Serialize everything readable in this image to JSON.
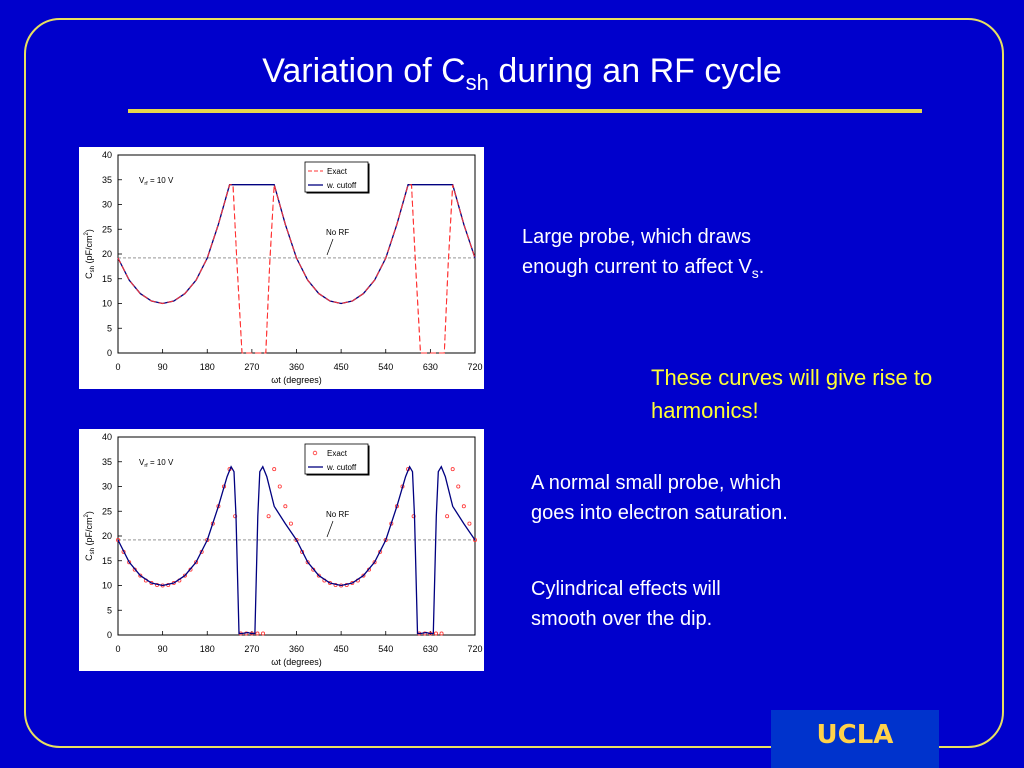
{
  "title": {
    "main": "Variation of C",
    "sub": "sh",
    "rest": " during an RF cycle"
  },
  "text": {
    "large_probe": {
      "before": "Large probe, which draws enough current to affect V",
      "sub": "s",
      "after": "."
    },
    "harmonics": "These curves will give rise to harmonics!",
    "small_probe": "A normal small probe, which goes into electron saturation.",
    "cylindrical": "Cylindrical effects will smooth over the dip."
  },
  "logo": {
    "text": "UCLA"
  },
  "colors": {
    "background": "#0000cc",
    "accent": "#e8d84a",
    "highlight": "#ffff33",
    "exact": "#ff3333",
    "cutoff": "#000080"
  },
  "chart_data": [
    {
      "type": "line",
      "xlabel": "ωt (degrees)",
      "ylabel": "C_sh (pF/cm²)",
      "ylabel_parts": {
        "c": "C",
        "sub": "sh",
        "unit": " (pF/cm",
        "sup": "2",
        "close": ")"
      },
      "xlim": [
        0,
        720
      ],
      "ylim": [
        0,
        40
      ],
      "xticks": [
        0,
        90,
        180,
        270,
        360,
        450,
        540,
        630,
        720
      ],
      "yticks": [
        0,
        5,
        10,
        15,
        20,
        25,
        30,
        35,
        40
      ],
      "annotation_vrf": {
        "v": "V",
        "sub": "rf",
        "rest": " = 10 V"
      },
      "annotation_norf": "No RF",
      "no_rf_level": 19.2,
      "legend": {
        "placement": "top-right",
        "entries": [
          "Exact",
          "w. cutoff"
        ]
      },
      "series": [
        {
          "name": "Exact",
          "style": "dashed",
          "x": [
            0,
            22.5,
            45,
            67.5,
            90,
            112.5,
            135,
            157.5,
            180,
            202.5,
            225,
            232,
            240,
            250,
            258,
            270,
            280,
            290,
            298,
            306,
            315,
            337.5,
            360,
            382.5,
            405,
            427.5,
            450,
            472.5,
            495,
            517.5,
            540,
            562.5,
            585,
            592,
            600,
            610,
            618,
            630,
            640,
            650,
            658,
            666,
            675,
            697.5,
            720
          ],
          "y": [
            19.2,
            14.7,
            12.0,
            10.5,
            10.0,
            10.5,
            12.0,
            14.7,
            19.2,
            26.0,
            34.0,
            34.0,
            18.0,
            0.0,
            0.0,
            0.0,
            0.0,
            0.0,
            0.0,
            18.0,
            34.0,
            26.0,
            19.2,
            14.7,
            12.0,
            10.5,
            10.0,
            10.5,
            12.0,
            14.7,
            19.2,
            26.0,
            34.0,
            34.0,
            18.0,
            0.0,
            0.0,
            0.0,
            0.0,
            0.0,
            0.0,
            18.0,
            34.0,
            26.0,
            19.2
          ]
        },
        {
          "name": "w. cutoff",
          "style": "solid",
          "x": [
            0,
            22.5,
            45,
            67.5,
            90,
            112.5,
            135,
            157.5,
            180,
            202.5,
            225,
            247.5,
            270,
            292.5,
            315,
            337.5,
            360,
            382.5,
            405,
            427.5,
            450,
            472.5,
            495,
            517.5,
            540,
            562.5,
            585,
            607.5,
            630,
            652.5,
            675,
            697.5,
            720
          ],
          "y": [
            19.2,
            14.7,
            12.0,
            10.5,
            10.0,
            10.5,
            12.0,
            14.7,
            19.2,
            26.0,
            34.0,
            34.0,
            34.0,
            34.0,
            34.0,
            26.0,
            19.2,
            14.7,
            12.0,
            10.5,
            10.0,
            10.5,
            12.0,
            14.7,
            19.2,
            26.0,
            34.0,
            34.0,
            34.0,
            34.0,
            34.0,
            26.0,
            19.2
          ]
        }
      ]
    },
    {
      "type": "line",
      "xlabel": "ωt (degrees)",
      "ylabel": "C_sh (pF/cm²)",
      "ylabel_parts": {
        "c": "C",
        "sub": "sh",
        "unit": " (pF/cm",
        "sup": "2",
        "close": ")"
      },
      "xlim": [
        0,
        720
      ],
      "ylim": [
        0,
        40
      ],
      "xticks": [
        0,
        90,
        180,
        270,
        360,
        450,
        540,
        630,
        720
      ],
      "yticks": [
        0,
        5,
        10,
        15,
        20,
        25,
        30,
        35,
        40
      ],
      "annotation_vrf": {
        "v": "V",
        "sub": "rf",
        "rest": " = 10 V"
      },
      "annotation_norf": "No RF",
      "no_rf_level": 19.2,
      "legend": {
        "placement": "top-right",
        "entries": [
          "Exact",
          "w. cutoff"
        ]
      },
      "series": [
        {
          "name": "Exact",
          "style": "markers",
          "x": [
            0,
            11.25,
            22.5,
            33.75,
            45,
            56.25,
            67.5,
            78.75,
            90,
            101.25,
            112.5,
            123.75,
            135,
            146.25,
            157.5,
            168.75,
            180,
            191.25,
            202.5,
            213.75,
            225,
            236.25,
            247.5,
            258.75,
            270,
            281.25,
            292.5,
            303.75,
            315,
            326.25,
            337.5,
            348.75,
            360,
            371.25,
            382.5,
            393.75,
            405,
            416.25,
            427.5,
            438.75,
            450,
            461.25,
            472.5,
            483.75,
            495,
            506.25,
            517.5,
            528.75,
            540,
            551.25,
            562.5,
            573.75,
            585,
            596.25,
            607.5,
            618.75,
            630,
            641.25,
            652.5,
            663.75,
            675,
            686.25,
            697.5,
            708.75,
            720
          ],
          "y": [
            19.2,
            16.8,
            14.7,
            13.2,
            12.0,
            11.0,
            10.5,
            10.1,
            10.0,
            10.1,
            10.5,
            11.0,
            12.0,
            13.2,
            14.7,
            16.8,
            19.2,
            22.5,
            26.0,
            30.0,
            33.5,
            24.0,
            0.3,
            0.3,
            0.3,
            0.3,
            0.3,
            24.0,
            33.5,
            30.0,
            26.0,
            22.5,
            19.2,
            16.8,
            14.7,
            13.2,
            12.0,
            11.0,
            10.5,
            10.1,
            10.0,
            10.1,
            10.5,
            11.0,
            12.0,
            13.2,
            14.7,
            16.8,
            19.2,
            22.5,
            26.0,
            30.0,
            33.5,
            24.0,
            0.3,
            0.3,
            0.3,
            0.3,
            0.3,
            24.0,
            33.5,
            30.0,
            26.0,
            22.5,
            19.2
          ]
        },
        {
          "name": "w. cutoff",
          "style": "solid",
          "x": [
            0,
            22.5,
            45,
            67.5,
            90,
            112.5,
            135,
            157.5,
            180,
            202.5,
            220,
            228,
            234,
            238,
            244,
            250,
            262,
            268,
            276,
            282,
            286,
            292,
            300,
            315,
            337.5,
            360,
            382.5,
            405,
            427.5,
            450,
            472.5,
            495,
            517.5,
            540,
            562.5,
            580,
            588,
            594,
            598,
            604,
            610,
            622,
            628,
            636,
            642,
            646,
            652,
            660,
            675,
            697.5,
            720
          ],
          "y": [
            19.2,
            14.7,
            12.0,
            10.5,
            10.0,
            10.5,
            12.0,
            14.7,
            19.2,
            26.0,
            32.0,
            34.0,
            33.0,
            24.0,
            0.3,
            0.3,
            0.5,
            0.3,
            0.3,
            24.0,
            33.0,
            34.0,
            32.0,
            26.0,
            22.5,
            19.2,
            14.7,
            12.0,
            10.5,
            10.0,
            10.5,
            12.0,
            14.7,
            19.2,
            26.0,
            32.0,
            34.0,
            33.0,
            24.0,
            0.3,
            0.3,
            0.5,
            0.3,
            0.3,
            24.0,
            33.0,
            34.0,
            32.0,
            26.0,
            22.5,
            19.2
          ]
        }
      ]
    }
  ]
}
